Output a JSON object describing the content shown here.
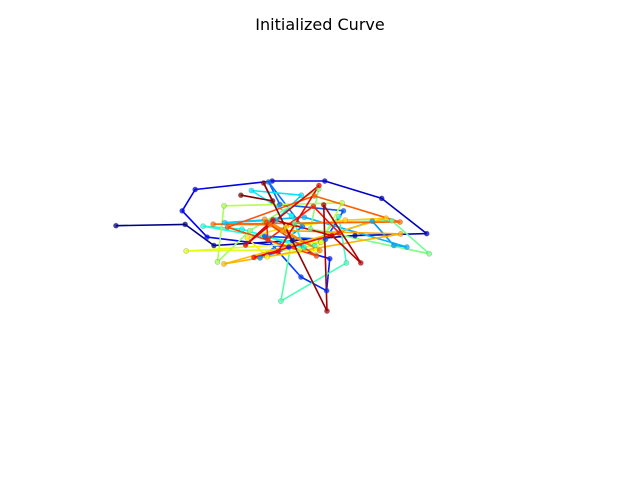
{
  "chart_data": {
    "type": "line",
    "title": "Initialized Curve",
    "xlabel": "",
    "ylabel": "",
    "axes_visible": false,
    "grid": false,
    "legend": "none",
    "colormap": "jet",
    "marker": "circle",
    "xlim": [
      0,
      100
    ],
    "ylim": [
      0,
      100
    ],
    "points": [
      [
        0.0,
        59.0
      ],
      [
        19.2,
        59.5
      ],
      [
        27.2,
        51.0
      ],
      [
        49.0,
        53.0
      ],
      [
        66.4,
        55.0
      ],
      [
        86.3,
        55.8
      ],
      [
        73.8,
        70.0
      ],
      [
        58.0,
        77.0
      ],
      [
        43.4,
        77.0
      ],
      [
        22.0,
        73.6
      ],
      [
        18.4,
        65.0
      ],
      [
        25.3,
        54.4
      ],
      [
        48.0,
        50.4
      ],
      [
        59.4,
        45.7
      ],
      [
        58.5,
        32.8
      ],
      [
        51.4,
        38.3
      ],
      [
        41.3,
        54.7
      ],
      [
        58.2,
        53.5
      ],
      [
        63.2,
        65.0
      ],
      [
        45.5,
        67.6
      ],
      [
        42.4,
        76.6
      ],
      [
        51.8,
        58.6
      ],
      [
        40.0,
        46.0
      ],
      [
        71.2,
        60.8
      ],
      [
        77.2,
        51.0
      ],
      [
        80.8,
        50.4
      ],
      [
        52.3,
        62.4
      ],
      [
        30.2,
        60.2
      ],
      [
        44.5,
        61.3
      ],
      [
        51.5,
        71.3
      ],
      [
        37.6,
        73.2
      ],
      [
        48.8,
        63.0
      ],
      [
        52.2,
        50.2
      ],
      [
        35.0,
        57.6
      ],
      [
        24.2,
        58.8
      ],
      [
        55.2,
        51.0
      ],
      [
        61.9,
        62.7
      ],
      [
        64.0,
        44.0
      ],
      [
        45.8,
        28.6
      ],
      [
        49.6,
        60.0
      ],
      [
        76.6,
        61.0
      ],
      [
        87.0,
        47.7
      ],
      [
        54.0,
        57.7
      ],
      [
        56.3,
        73.8
      ],
      [
        37.2,
        57.0
      ],
      [
        28.2,
        44.4
      ],
      [
        30.0,
        67.0
      ],
      [
        62.8,
        68.2
      ],
      [
        56.8,
        52.4
      ],
      [
        51.0,
        49.3
      ],
      [
        19.5,
        48.8
      ],
      [
        57.0,
        52.3
      ],
      [
        55.5,
        49.2
      ],
      [
        42.0,
        46.5
      ],
      [
        36.5,
        54.0
      ],
      [
        47.2,
        58.5
      ],
      [
        63.7,
        61.2
      ],
      [
        75.0,
        62.0
      ],
      [
        30.0,
        43.6
      ],
      [
        79.1,
        55.7
      ],
      [
        46.2,
        57.0
      ],
      [
        41.3,
        61.6
      ],
      [
        56.6,
        49.0
      ],
      [
        42.8,
        59.4
      ],
      [
        27.0,
        59.6
      ],
      [
        78.9,
        60.5
      ],
      [
        55.1,
        71.0
      ],
      [
        31.0,
        58.4
      ],
      [
        55.7,
        46.8
      ],
      [
        41.8,
        60.3
      ],
      [
        42.2,
        53.4
      ],
      [
        54.8,
        66.8
      ],
      [
        62.0,
        56.0
      ],
      [
        38.3,
        46.2
      ],
      [
        45.0,
        48.5
      ],
      [
        56.4,
        75.2
      ],
      [
        36.0,
        51.2
      ],
      [
        43.6,
        61.4
      ],
      [
        60.0,
        55.0
      ],
      [
        68.0,
        44.0
      ],
      [
        57.7,
        67.4
      ],
      [
        58.6,
        24.6
      ],
      [
        41.0,
        76.2
      ],
      [
        43.5,
        69.0
      ],
      [
        34.7,
        71.3
      ]
    ]
  }
}
